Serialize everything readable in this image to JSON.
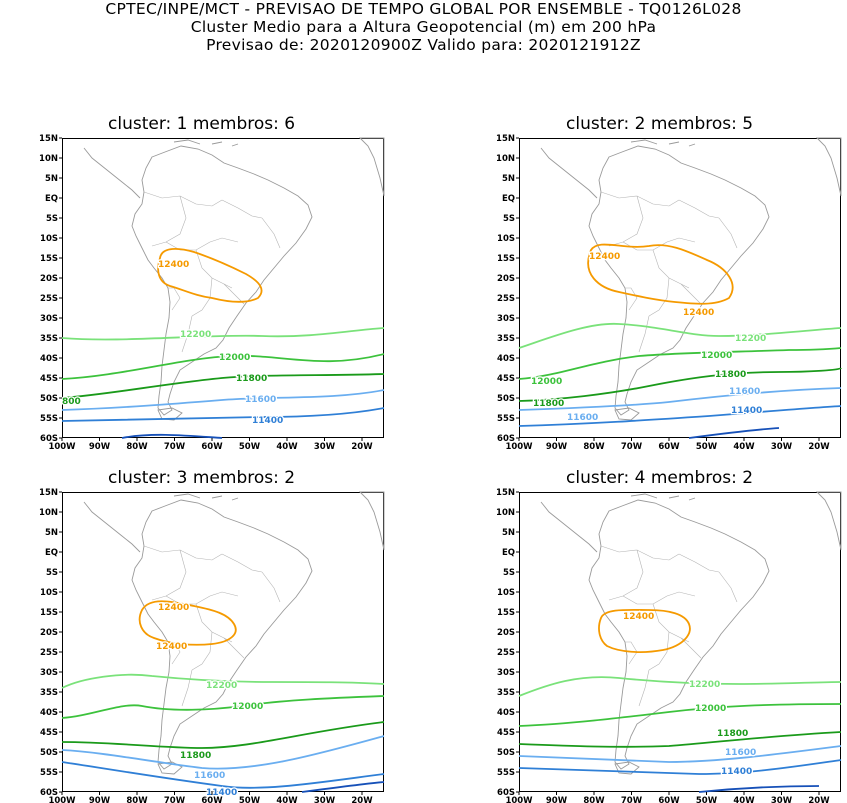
{
  "header": {
    "line1": "CPTEC/INPE/MCT - PREVISAO DE TEMPO GLOBAL POR ENSEMBLE - TQ0126L028",
    "line2": "Cluster Medio para a Altura Geopotencial (m) em 200 hPa",
    "line3": "Previsao de: 2020120900Z    Valido para: 2020121912Z"
  },
  "axes": {
    "lat_labels": [
      "15N",
      "10N",
      "5N",
      "EQ",
      "5S",
      "10S",
      "15S",
      "20S",
      "25S",
      "30S",
      "35S",
      "40S",
      "45S",
      "50S",
      "55S",
      "60S"
    ],
    "lon_labels": [
      "100W",
      "90W",
      "80W",
      "70W",
      "60W",
      "50W",
      "40W",
      "30W",
      "20W"
    ]
  },
  "colors": {
    "c12400": "#f59a00",
    "c12200": "#7ae27a",
    "c12000": "#3cc23c",
    "c11800": "#1a9a1a",
    "c11600": "#6aaef0",
    "c11400": "#2f7fd6",
    "c11200": "#1650b8",
    "map": "#9a9a9a"
  },
  "panels": [
    {
      "title": "cluster: 1   membros: 6",
      "labels": {
        "c12400": "12400",
        "c12200": "12200",
        "c12000": "12000",
        "c11800": "11800",
        "c11800b": "800",
        "c11600": "11600",
        "c11400": "11400"
      }
    },
    {
      "title": "cluster: 2   membros: 5",
      "labels": {
        "c12400": "12400",
        "c12400b": "12400",
        "c12200": "12200",
        "c12000": "12000",
        "c12000b": "12000",
        "c11800": "11800",
        "c11800b": "11800",
        "c11600": "11600",
        "c11600b": "11600",
        "c11400": "11400"
      }
    },
    {
      "title": "cluster: 3   membros: 2",
      "labels": {
        "c12400": "12400",
        "c12400b": "12400",
        "c12200": "12200",
        "c12000": "12000",
        "c11800": "11800",
        "c11600": "11600",
        "c11400": "11400"
      }
    },
    {
      "title": "cluster: 4   membros: 2",
      "labels": {
        "c12400": "12400",
        "c12200": "12200",
        "c12000": "12000",
        "c11800": "11800",
        "c11600": "11600",
        "c11400": "11400"
      }
    }
  ]
}
